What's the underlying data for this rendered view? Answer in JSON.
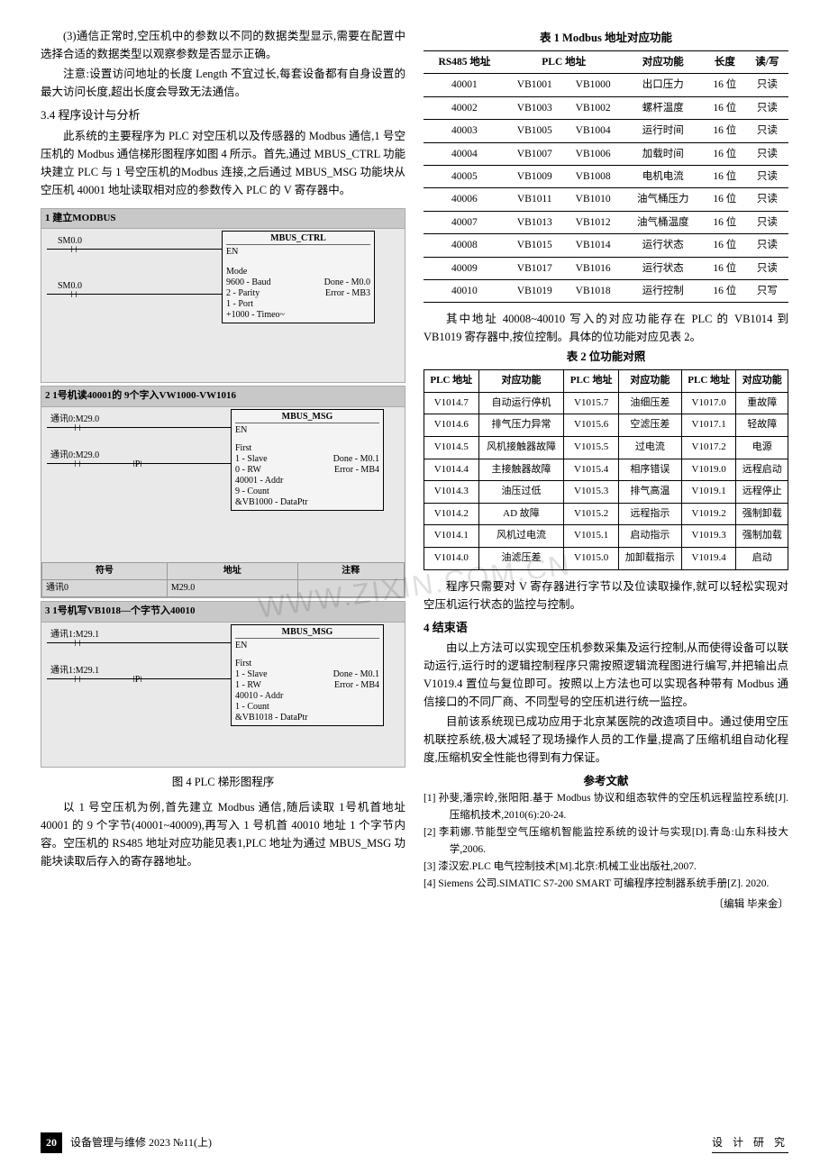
{
  "left": {
    "para1": "(3)通信正常时,空压机中的参数以不同的数据类型显示,需要在配置中选择合适的数据类型以观察参数是否显示正确。",
    "note": "注意:设置访问地址的长度 Length 不宜过长,每套设备都有自身设置的最大访问长度,超出长度会导致无法通信。",
    "sec34": "3.4  程序设计与分析",
    "para2": "此系统的主要程序为 PLC 对空压机以及传感器的 Modbus 通信,1 号空压机的 Modbus 通信梯形图程序如图 4 所示。首先,通过 MBUS_CTRL 功能块建立 PLC 与 1 号空压机的Modbus 连接,之后通过 MBUS_MSG 功能块从空压机 40001 地址读取相对应的参数传入 PLC 的 V 寄存器中。",
    "figcap": "图 4  PLC 梯形图程序",
    "para3": "以 1 号空压机为例,首先建立 Modbus 通信,随后读取 1号机首地址 40001 的 9 个字节(40001~40009),再写入 1 号机首 40010 地址 1 个字节内容。空压机的 RS485 地址对应功能见表1,PLC 地址为通过 MBUS_MSG 功能块读取后存入的寄存器地址。"
  },
  "ladder": {
    "b1_title": "1   建立MODBUS",
    "b2_title": "2   1号机读40001的 9个字入VW1000-VW1016",
    "b3_title": "3   1号机写VB1018—个字节入40010",
    "sm00": "SM0.0",
    "comm0": "通讯0:M29.0",
    "comm1": "通讯1:M29.1",
    "mbus_ctrl": "MBUS_CTRL",
    "mbus_msg": "MBUS_MSG",
    "ctrl_params": [
      "EN",
      "Mode",
      "9600 - Baud",
      "2 - Parity",
      "1 - Port",
      "+1000 - Timeo~"
    ],
    "ctrl_outs": [
      "Done - M0.0",
      "Error - MB3"
    ],
    "msg_params": [
      "EN",
      "",
      "First",
      "1 - Slave",
      "0 - RW",
      "40001 - Addr",
      "9 - Count",
      "&VB1000 - DataPtr"
    ],
    "msg_outs": [
      "Done - M0.1",
      "Error - MB4"
    ],
    "msg2_params": [
      "EN",
      "",
      "First",
      "1 - Slave",
      "1 - RW",
      "40010 - Addr",
      "1 - Count",
      "&VB1018 - DataPtr"
    ],
    "symtab_head": [
      "符号",
      "地址",
      "注释"
    ],
    "symtab_row": [
      "通讯0",
      "M29.0",
      ""
    ]
  },
  "table1": {
    "title": "表 1  Modbus 地址对应功能",
    "head": [
      "RS485 地址",
      "PLC 地址",
      "",
      "对应功能",
      "长度",
      "读/写"
    ],
    "rows": [
      [
        "40001",
        "VB1001",
        "VB1000",
        "出口压力",
        "16 位",
        "只读"
      ],
      [
        "40002",
        "VB1003",
        "VB1002",
        "螺杆温度",
        "16 位",
        "只读"
      ],
      [
        "40003",
        "VB1005",
        "VB1004",
        "运行时间",
        "16 位",
        "只读"
      ],
      [
        "40004",
        "VB1007",
        "VB1006",
        "加载时间",
        "16 位",
        "只读"
      ],
      [
        "40005",
        "VB1009",
        "VB1008",
        "电机电流",
        "16 位",
        "只读"
      ],
      [
        "40006",
        "VB1011",
        "VB1010",
        "油气桶压力",
        "16 位",
        "只读"
      ],
      [
        "40007",
        "VB1013",
        "VB1012",
        "油气桶温度",
        "16 位",
        "只读"
      ],
      [
        "40008",
        "VB1015",
        "VB1014",
        "运行状态",
        "16 位",
        "只读"
      ],
      [
        "40009",
        "VB1017",
        "VB1016",
        "运行状态",
        "16 位",
        "只读"
      ],
      [
        "40010",
        "VB1019",
        "VB1018",
        "运行控制",
        "16 位",
        "只写"
      ]
    ]
  },
  "mid_para": "其中地址 40008~40010 写入的对应功能存在 PLC 的 VB1014 到 VB1019 寄存器中,按位控制。具体的位功能对应见表 2。",
  "table2": {
    "title": "表 2  位功能对照",
    "head": [
      "PLC 地址",
      "对应功能",
      "PLC 地址",
      "对应功能",
      "PLC 地址",
      "对应功能"
    ],
    "rows": [
      [
        "V1014.7",
        "自动运行停机",
        "V1015.7",
        "油细压差",
        "V1017.0",
        "重故障"
      ],
      [
        "V1014.6",
        "排气压力异常",
        "V1015.6",
        "空滤压差",
        "V1017.1",
        "轻故障"
      ],
      [
        "V1014.5",
        "风机接触器故障",
        "V1015.5",
        "过电流",
        "V1017.2",
        "电源"
      ],
      [
        "V1014.4",
        "主接触器故障",
        "V1015.4",
        "相序错误",
        "V1019.0",
        "远程启动"
      ],
      [
        "V1014.3",
        "油压过低",
        "V1015.3",
        "排气高温",
        "V1019.1",
        "远程停止"
      ],
      [
        "V1014.2",
        "AD 故障",
        "V1015.2",
        "远程指示",
        "V1019.2",
        "强制卸载"
      ],
      [
        "V1014.1",
        "风机过电流",
        "V1015.1",
        "启动指示",
        "V1019.3",
        "强制加载"
      ],
      [
        "V1014.0",
        "油滤压差",
        "V1015.0",
        "加卸载指示",
        "V1019.4",
        "启动"
      ]
    ]
  },
  "right": {
    "para_after_t2": "程序只需要对 V 寄存器进行字节以及位读取操作,就可以轻松实现对空压机运行状态的监控与控制。",
    "sec4": "4  结束语",
    "para4a": "由以上方法可以实现空压机参数采集及运行控制,从而使得设备可以联动运行,运行时的逻辑控制程序只需按照逻辑流程图进行编写,并把输出点 V1019.4 置位与复位即可。按照以上方法也可以实现各种带有 Modbus 通信接口的不同厂商、不同型号的空压机进行统一监控。",
    "para4b": "目前该系统现已成功应用于北京某医院的改造项目中。通过使用空压机联控系统,极大减轻了现场操作人员的工作量,提高了压缩机组自动化程度,压缩机安全性能也得到有力保证。",
    "refs_title": "参考文献",
    "refs": [
      "[1] 孙斐,潘宗岭,张阳阳.基于 Modbus 协议和组态软件的空压机远程监控系统[J].压缩机技术,2010(6):20-24.",
      "[2] 李莉娜.节能型空气压缩机智能监控系统的设计与实现[D].青岛:山东科技大学,2006.",
      "[3] 漆汉宏.PLC 电气控制技术[M].北京:机械工业出版社,2007.",
      "[4] Siemens 公司.SIMATIC S7-200 SMART 可编程序控制器系统手册[Z]. 2020."
    ],
    "editor": "〔编辑   毕来金〕"
  },
  "footer": {
    "pagenum": "20",
    "journal": "设备管理与维修  2023 №11(上)",
    "section": "设 计 研 究"
  },
  "watermark": "WWW.ZIXIN.COM.CN",
  "colors": {
    "bg": "#ffffff",
    "text": "#000000",
    "ladder_bg": "#e9e9e9",
    "ladder_title": "#c8c8c8"
  }
}
